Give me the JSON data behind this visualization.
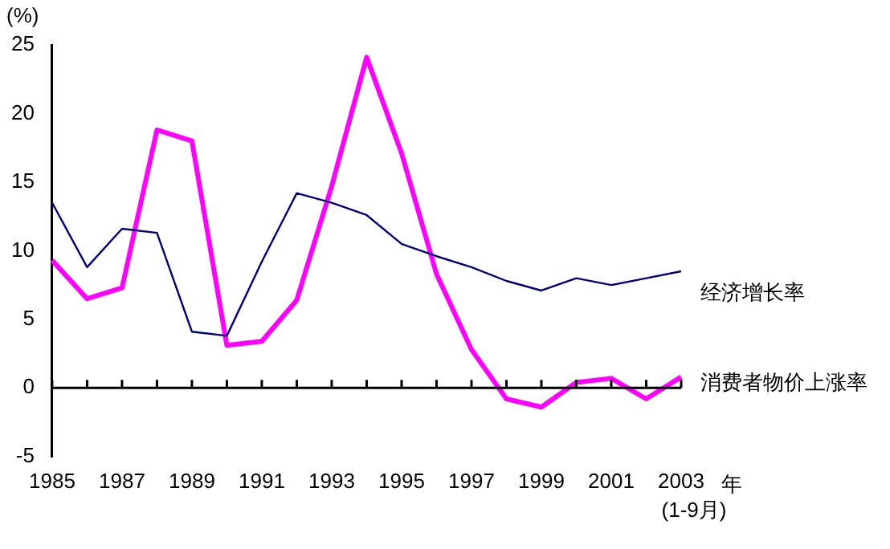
{
  "chart_data": {
    "type": "line",
    "ylabel": "(%)",
    "xlabel": "年",
    "annotations": [
      "(1-9月)"
    ],
    "categories": [
      "1985",
      null,
      "1987",
      null,
      "1989",
      null,
      "1991",
      null,
      "1993",
      null,
      "1995",
      null,
      "1997",
      null,
      "1999",
      null,
      "2001",
      null,
      "2003"
    ],
    "ylim": [
      -5,
      25
    ],
    "yticks": [
      -5,
      0,
      5,
      10,
      15,
      20,
      25
    ],
    "grid": false,
    "ref_lines": [
      {
        "axis": "y",
        "value": 0,
        "color": "#000000"
      }
    ],
    "legend": false,
    "marker": "none",
    "line_style": "solid",
    "series": [
      {
        "name": "经济增长率",
        "color": "#000080",
        "values": [
          13.5,
          8.8,
          11.6,
          11.3,
          4.1,
          3.8,
          9.2,
          14.2,
          13.5,
          12.6,
          10.5,
          9.6,
          8.8,
          7.8,
          7.1,
          8.0,
          7.5,
          8.0,
          8.5
        ]
      },
      {
        "name": "消费者物价上涨率",
        "color": "#ff00ff",
        "values": [
          9.3,
          6.5,
          7.3,
          18.8,
          18.0,
          3.1,
          3.4,
          6.4,
          14.7,
          24.1,
          17.1,
          8.3,
          2.8,
          -0.8,
          -1.4,
          0.4,
          0.7,
          -0.8,
          0.8
        ]
      }
    ]
  }
}
